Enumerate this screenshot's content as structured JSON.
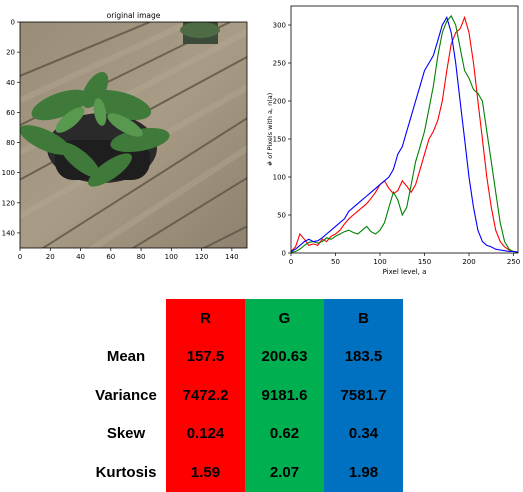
{
  "image_panel": {
    "title": "original image",
    "x_ticks": [
      "0",
      "20",
      "40",
      "60",
      "80",
      "100",
      "120",
      "140"
    ],
    "y_ticks": [
      "0",
      "20",
      "40",
      "60",
      "80",
      "100",
      "120",
      "140"
    ]
  },
  "chart_data": {
    "type": "line",
    "title": "",
    "xlabel": "Pixel level, a",
    "ylabel": "# of Pixels with a, n(a)",
    "xlim": [
      0,
      255
    ],
    "ylim": [
      0,
      325
    ],
    "x_ticks": [
      0,
      50,
      100,
      150,
      200,
      250
    ],
    "y_ticks": [
      0,
      50,
      100,
      150,
      200,
      250,
      300
    ],
    "grid": false,
    "series": [
      {
        "color": "#ff0000",
        "points": [
          [
            0,
            2
          ],
          [
            5,
            8
          ],
          [
            10,
            25
          ],
          [
            15,
            18
          ],
          [
            20,
            10
          ],
          [
            25,
            12
          ],
          [
            30,
            10
          ],
          [
            35,
            18
          ],
          [
            40,
            15
          ],
          [
            45,
            22
          ],
          [
            50,
            25
          ],
          [
            55,
            30
          ],
          [
            60,
            38
          ],
          [
            65,
            45
          ],
          [
            70,
            50
          ],
          [
            75,
            55
          ],
          [
            80,
            60
          ],
          [
            85,
            65
          ],
          [
            90,
            72
          ],
          [
            95,
            80
          ],
          [
            100,
            90
          ],
          [
            105,
            95
          ],
          [
            110,
            85
          ],
          [
            115,
            78
          ],
          [
            120,
            82
          ],
          [
            125,
            95
          ],
          [
            130,
            88
          ],
          [
            135,
            80
          ],
          [
            140,
            90
          ],
          [
            145,
            110
          ],
          [
            150,
            130
          ],
          [
            155,
            150
          ],
          [
            160,
            160
          ],
          [
            165,
            175
          ],
          [
            170,
            200
          ],
          [
            175,
            240
          ],
          [
            180,
            275
          ],
          [
            185,
            290
          ],
          [
            190,
            295
          ],
          [
            195,
            310
          ],
          [
            200,
            290
          ],
          [
            205,
            250
          ],
          [
            210,
            200
          ],
          [
            215,
            150
          ],
          [
            220,
            100
          ],
          [
            225,
            60
          ],
          [
            230,
            30
          ],
          [
            235,
            15
          ],
          [
            240,
            8
          ],
          [
            245,
            4
          ],
          [
            250,
            2
          ],
          [
            255,
            1
          ]
        ]
      },
      {
        "color": "#008000",
        "points": [
          [
            0,
            1
          ],
          [
            5,
            2
          ],
          [
            10,
            5
          ],
          [
            15,
            10
          ],
          [
            20,
            14
          ],
          [
            25,
            15
          ],
          [
            30,
            13
          ],
          [
            35,
            15
          ],
          [
            40,
            20
          ],
          [
            45,
            18
          ],
          [
            50,
            22
          ],
          [
            55,
            25
          ],
          [
            60,
            28
          ],
          [
            65,
            30
          ],
          [
            70,
            27
          ],
          [
            75,
            25
          ],
          [
            80,
            30
          ],
          [
            85,
            35
          ],
          [
            90,
            28
          ],
          [
            95,
            25
          ],
          [
            100,
            30
          ],
          [
            105,
            40
          ],
          [
            110,
            60
          ],
          [
            115,
            80
          ],
          [
            120,
            70
          ],
          [
            125,
            50
          ],
          [
            130,
            60
          ],
          [
            135,
            90
          ],
          [
            140,
            120
          ],
          [
            145,
            140
          ],
          [
            150,
            160
          ],
          [
            155,
            190
          ],
          [
            160,
            220
          ],
          [
            165,
            260
          ],
          [
            170,
            290
          ],
          [
            175,
            305
          ],
          [
            180,
            312
          ],
          [
            185,
            300
          ],
          [
            190,
            270
          ],
          [
            195,
            240
          ],
          [
            200,
            230
          ],
          [
            205,
            215
          ],
          [
            210,
            210
          ],
          [
            215,
            200
          ],
          [
            220,
            160
          ],
          [
            225,
            120
          ],
          [
            230,
            80
          ],
          [
            235,
            40
          ],
          [
            240,
            15
          ],
          [
            245,
            5
          ],
          [
            250,
            2
          ],
          [
            255,
            1
          ]
        ]
      },
      {
        "color": "#0000ff",
        "points": [
          [
            0,
            2
          ],
          [
            5,
            5
          ],
          [
            10,
            10
          ],
          [
            15,
            15
          ],
          [
            20,
            18
          ],
          [
            25,
            15
          ],
          [
            30,
            16
          ],
          [
            35,
            20
          ],
          [
            40,
            25
          ],
          [
            45,
            30
          ],
          [
            50,
            35
          ],
          [
            55,
            40
          ],
          [
            60,
            45
          ],
          [
            65,
            55
          ],
          [
            70,
            60
          ],
          [
            75,
            65
          ],
          [
            80,
            70
          ],
          [
            85,
            75
          ],
          [
            90,
            80
          ],
          [
            95,
            85
          ],
          [
            100,
            90
          ],
          [
            105,
            95
          ],
          [
            110,
            100
          ],
          [
            115,
            110
          ],
          [
            120,
            130
          ],
          [
            125,
            140
          ],
          [
            130,
            160
          ],
          [
            135,
            180
          ],
          [
            140,
            200
          ],
          [
            145,
            220
          ],
          [
            150,
            240
          ],
          [
            155,
            250
          ],
          [
            160,
            260
          ],
          [
            165,
            280
          ],
          [
            170,
            300
          ],
          [
            175,
            310
          ],
          [
            180,
            290
          ],
          [
            185,
            250
          ],
          [
            190,
            200
          ],
          [
            195,
            150
          ],
          [
            200,
            100
          ],
          [
            205,
            60
          ],
          [
            210,
            30
          ],
          [
            215,
            15
          ],
          [
            220,
            10
          ],
          [
            225,
            8
          ],
          [
            230,
            5
          ],
          [
            235,
            4
          ],
          [
            240,
            3
          ],
          [
            245,
            2
          ],
          [
            250,
            2
          ],
          [
            255,
            1
          ]
        ]
      }
    ]
  },
  "stats": {
    "columns": [
      "R",
      "G",
      "B"
    ],
    "rows": [
      {
        "label": "Mean",
        "values": [
          "157.5",
          "200.63",
          "183.5"
        ]
      },
      {
        "label": "Variance",
        "values": [
          "7472.2",
          "9181.6",
          "7581.7"
        ]
      },
      {
        "label": "Skew",
        "values": [
          "0.124",
          "0.62",
          "0.34"
        ]
      },
      {
        "label": "Kurtosis",
        "values": [
          "1.59",
          "2.07",
          "1.98"
        ]
      }
    ],
    "colors": {
      "R": "#ff0000",
      "G": "#00b050",
      "B": "#0070c0"
    }
  }
}
